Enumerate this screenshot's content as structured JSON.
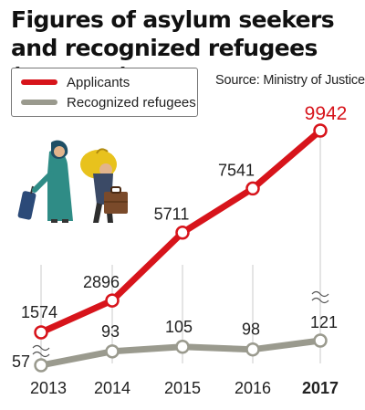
{
  "header": {
    "title_line1": "Figures of asylum seekers",
    "title_line2": "and recognized refugees (persons)"
  },
  "source": "Source: Ministry of Justice",
  "colors": {
    "applicants": "#d7141b",
    "recognized": "#9a9a8e",
    "grid": "#dcdcdc",
    "axis_text": "#222222"
  },
  "icons": [
    "woman-with-suitcase-icon",
    "man-carrying-bag-icon"
  ],
  "chart_data": {
    "type": "line",
    "title": "Figures of asylum seekers and recognized refugees (persons)",
    "categories": [
      "2013",
      "2014",
      "2015",
      "2016",
      "2017"
    ],
    "highlight_category": "2017",
    "axis_break": true,
    "grid": "vertical",
    "legend_position": "top-left",
    "series": [
      {
        "name": "Applicants",
        "values": [
          1574,
          2896,
          5711,
          7541,
          9942
        ],
        "labels": [
          "1574",
          "2896",
          "5711",
          "7541",
          "9942"
        ]
      },
      {
        "name": "Recognized refugees",
        "values": [
          57,
          93,
          105,
          98,
          121
        ],
        "labels": [
          "57",
          "93",
          "105",
          "98",
          "121"
        ]
      }
    ]
  }
}
